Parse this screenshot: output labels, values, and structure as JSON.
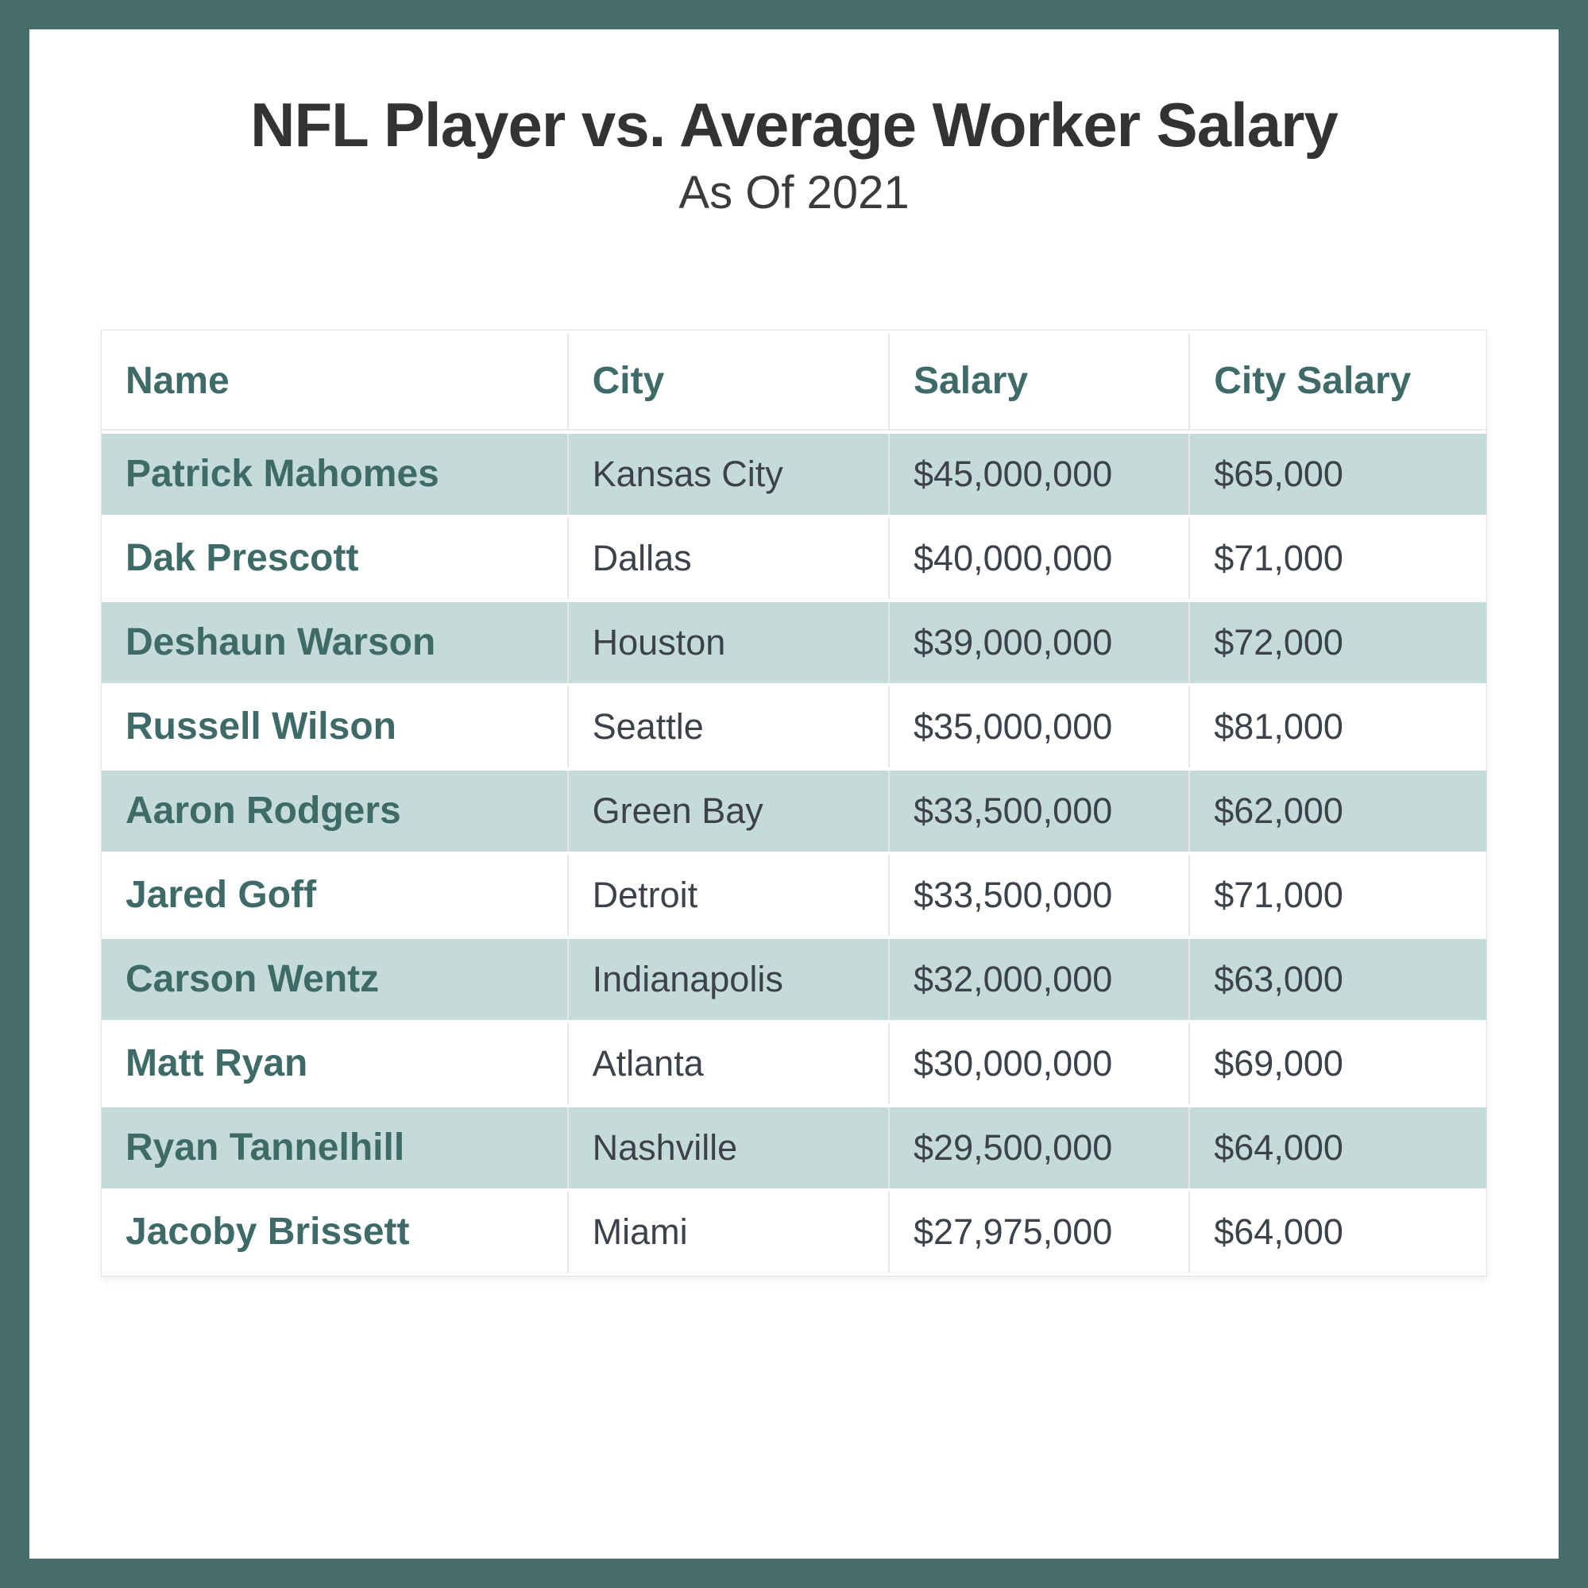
{
  "title": "NFL Player vs. Average Worker Salary",
  "subtitle": "As Of 2021",
  "colors": {
    "frame": "#466c6c",
    "card_bg": "#ffffff",
    "title_text": "#333333",
    "header_text": "#3e6b68",
    "player_name_text": "#3e6b68",
    "body_text": "#3d424a",
    "row_alt_bg": "#c5dbd9",
    "row_bg": "#ffffff"
  },
  "chart_data": {
    "type": "table",
    "title": "NFL Player vs. Average Worker Salary",
    "subtitle": "As Of 2021",
    "columns": [
      "Name",
      "City",
      "Salary",
      "City Salary"
    ],
    "rows": [
      {
        "name": "Patrick Mahomes",
        "city": "Kansas City",
        "salary": "$45,000,000",
        "city_salary": "$65,000"
      },
      {
        "name": "Dak Prescott",
        "city": "Dallas",
        "salary": "$40,000,000",
        "city_salary": "$71,000"
      },
      {
        "name": "Deshaun Warson",
        "city": "Houston",
        "salary": "$39,000,000",
        "city_salary": "$72,000"
      },
      {
        "name": "Russell Wilson",
        "city": "Seattle",
        "salary": "$35,000,000",
        "city_salary": "$81,000"
      },
      {
        "name": "Aaron Rodgers",
        "city": "Green Bay",
        "salary": "$33,500,000",
        "city_salary": "$62,000"
      },
      {
        "name": "Jared Goff",
        "city": "Detroit",
        "salary": "$33,500,000",
        "city_salary": "$71,000"
      },
      {
        "name": "Carson Wentz",
        "city": "Indianapolis",
        "salary": "$32,000,000",
        "city_salary": "$63,000"
      },
      {
        "name": "Matt Ryan",
        "city": "Atlanta",
        "salary": "$30,000,000",
        "city_salary": "$69,000"
      },
      {
        "name": "Ryan Tannelhill",
        "city": "Nashville",
        "salary": "$29,500,000",
        "city_salary": "$64,000"
      },
      {
        "name": "Jacoby Brissett",
        "city": "Miami",
        "salary": "$27,975,000",
        "city_salary": "$64,000"
      }
    ]
  }
}
